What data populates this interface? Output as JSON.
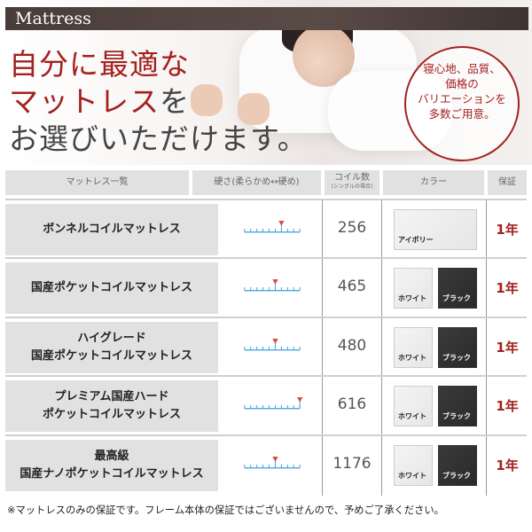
{
  "header": {
    "title": "Mattress"
  },
  "hero": {
    "headline_lines": [
      [
        "自分に最適な",
        ""
      ],
      [
        "マットレス",
        "を"
      ],
      [
        "",
        "お選びいただけます。"
      ]
    ],
    "badge_lines": [
      "寝心地、品質、",
      "価格の",
      "バリエーションを",
      "多数ご用意。"
    ]
  },
  "table": {
    "headers": {
      "name": "マットレス一覧",
      "hardness": "硬さ(柔らかめ↔硬め)",
      "coil": "コイル数",
      "coil_note": "(シングルの場合)",
      "color": "カラー",
      "warranty": "保証"
    },
    "hardness_scale_max": 9,
    "rows": [
      {
        "name": [
          "ボンネルコイルマットレス"
        ],
        "hardness": 6,
        "coil": "256",
        "colors": [
          "アイボリー"
        ],
        "warranty": "1年"
      },
      {
        "name": [
          "国産ポケットコイルマットレス"
        ],
        "hardness": 5,
        "coil": "465",
        "colors": [
          "ホワイト",
          "ブラック"
        ],
        "warranty": "1年"
      },
      {
        "name": [
          "ハイグレード",
          "国産ポケットコイルマットレス"
        ],
        "hardness": 5,
        "coil": "480",
        "colors": [
          "ホワイト",
          "ブラック"
        ],
        "warranty": "1年"
      },
      {
        "name": [
          "プレミアム国産ハード",
          "ポケットコイルマットレス"
        ],
        "hardness": 9,
        "coil": "616",
        "colors": [
          "ホワイト",
          "ブラック"
        ],
        "warranty": "1年"
      },
      {
        "name": [
          "最高級",
          "国産ナノポケットコイルマットレス"
        ],
        "hardness": 5,
        "coil": "1176",
        "colors": [
          "ホワイト",
          "ブラック"
        ],
        "warranty": "1年"
      }
    ]
  },
  "footer": {
    "note": "※マットレスのみの保証です。フレーム本体の保証ではございませんので、予めご了承ください。"
  },
  "colors": {
    "accent": "#a3211f",
    "scale": "#3aa0dc",
    "marker": "#d94a4a"
  }
}
